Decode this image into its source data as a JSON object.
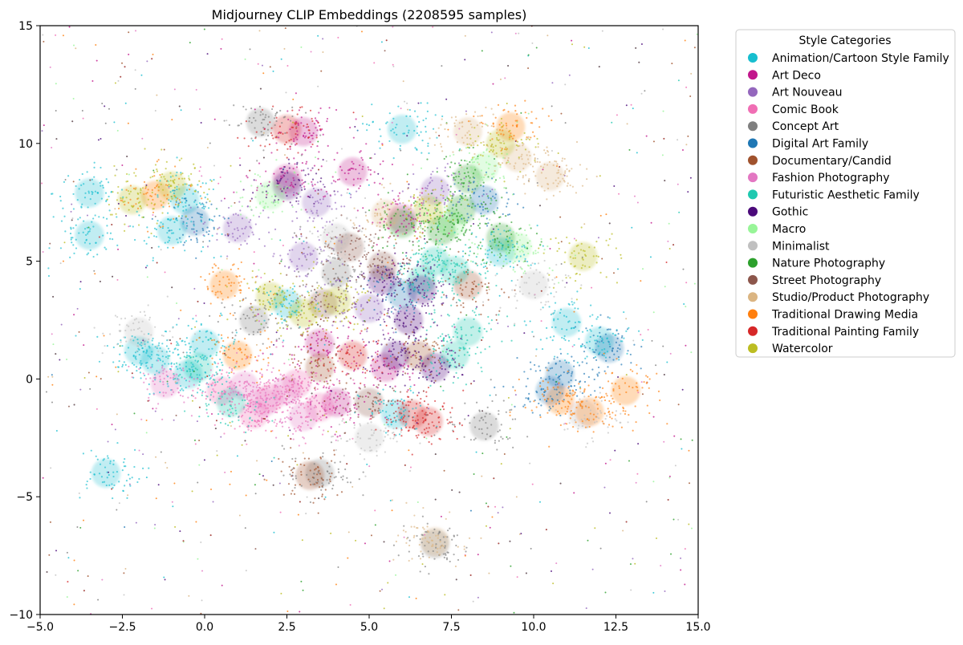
{
  "chart_data": {
    "type": "scatter",
    "title": "Midjourney CLIP Embeddings (2208595 samples)",
    "xlabel": "",
    "ylabel": "",
    "xlim": [
      -5.0,
      15.0
    ],
    "ylim": [
      -10,
      15
    ],
    "x_ticks": [
      -5.0,
      -2.5,
      0.0,
      2.5,
      5.0,
      7.5,
      10.0,
      12.5,
      15.0
    ],
    "x_tick_labels": [
      "−5.0",
      "−2.5",
      "0.0",
      "2.5",
      "5.0",
      "7.5",
      "10.0",
      "12.5",
      "15.0"
    ],
    "y_ticks": [
      -10,
      -5,
      0,
      5,
      10,
      15
    ],
    "y_tick_labels": [
      "−10",
      "−5",
      "0",
      "5",
      "10",
      "15"
    ],
    "grid": false,
    "legend": {
      "title": "Style Categories",
      "placement": "outside-right-top",
      "entries": [
        {
          "label": "Animation/Cartoon Style Family",
          "color": "#17becf"
        },
        {
          "label": "Art Deco",
          "color": "#c2178c"
        },
        {
          "label": "Art Nouveau",
          "color": "#9467bd"
        },
        {
          "label": "Comic Book",
          "color": "#f06eb4"
        },
        {
          "label": "Concept Art",
          "color": "#7f7f7f"
        },
        {
          "label": "Digital Art Family",
          "color": "#1f77b4"
        },
        {
          "label": "Documentary/Candid",
          "color": "#a0522d"
        },
        {
          "label": "Fashion Photography",
          "color": "#e377c2"
        },
        {
          "label": "Futuristic Aesthetic Family",
          "color": "#20c9b0"
        },
        {
          "label": "Gothic",
          "color": "#4b0a7a"
        },
        {
          "label": "Macro",
          "color": "#98f598"
        },
        {
          "label": "Minimalist",
          "color": "#c0c0c0"
        },
        {
          "label": "Nature Photography",
          "color": "#2ca02c"
        },
        {
          "label": "Street Photography",
          "color": "#8c564b"
        },
        {
          "label": "Studio/Product Photography",
          "color": "#dbb582"
        },
        {
          "label": "Traditional Drawing Media",
          "color": "#ff7f0e"
        },
        {
          "label": "Traditional Painting Family",
          "color": "#d62728"
        },
        {
          "label": "Watercolor",
          "color": "#bcbd22"
        }
      ]
    },
    "series": [
      {
        "name": "Animation/Cartoon Style Family",
        "color": "#17becf",
        "points": [
          [
            -1.5,
            0.8
          ],
          [
            -0.5,
            0.2
          ],
          [
            -2.0,
            1.2
          ],
          [
            -1.0,
            6.3
          ],
          [
            0.0,
            1.5
          ],
          [
            -3.5,
            7.9
          ],
          [
            -0.6,
            7.6
          ],
          [
            -3.5,
            6.1
          ],
          [
            11.0,
            2.4
          ],
          [
            9.0,
            5.4
          ],
          [
            2.5,
            3.2
          ],
          [
            12.0,
            1.6
          ],
          [
            -3.0,
            -4.0
          ],
          [
            6.0,
            10.6
          ],
          [
            5.8,
            -1.5
          ]
        ]
      },
      {
        "name": "Art Deco",
        "color": "#c2178c",
        "points": [
          [
            4.5,
            8.8
          ],
          [
            3.5,
            1.5
          ],
          [
            5.5,
            0.5
          ],
          [
            2.5,
            8.5
          ],
          [
            6.0,
            6.8
          ],
          [
            4.0,
            -1.0
          ],
          [
            3.0,
            10.5
          ]
        ]
      },
      {
        "name": "Art Nouveau",
        "color": "#9467bd",
        "points": [
          [
            3.4,
            7.5
          ],
          [
            3.0,
            5.2
          ],
          [
            7.0,
            8.0
          ],
          [
            1.0,
            6.4
          ],
          [
            5.0,
            3.0
          ]
        ]
      },
      {
        "name": "Comic Book",
        "color": "#f06eb4",
        "points": [
          [
            2.0,
            -0.8
          ],
          [
            2.8,
            -0.2
          ],
          [
            1.5,
            -1.5
          ],
          [
            0.5,
            -0.5
          ],
          [
            3.5,
            -1.2
          ]
        ]
      },
      {
        "name": "Concept Art",
        "color": "#7f7f7f",
        "points": [
          [
            1.5,
            2.5
          ],
          [
            4.0,
            4.5
          ],
          [
            1.7,
            10.9
          ],
          [
            7.0,
            -7.0
          ],
          [
            8.5,
            -2.0
          ],
          [
            3.5,
            -4.0
          ]
        ]
      },
      {
        "name": "Digital Art Family",
        "color": "#1f77b4",
        "points": [
          [
            10.5,
            -0.5
          ],
          [
            8.5,
            7.6
          ],
          [
            6.0,
            3.6
          ],
          [
            12.3,
            1.3
          ],
          [
            10.8,
            0.2
          ],
          [
            -0.3,
            6.7
          ]
        ]
      },
      {
        "name": "Documentary/Candid",
        "color": "#a0522d",
        "points": [
          [
            3.5,
            0.5
          ],
          [
            6.5,
            1.0
          ],
          [
            3.2,
            -4.1
          ],
          [
            8.0,
            4.0
          ]
        ]
      },
      {
        "name": "Fashion Photography",
        "color": "#e377c2",
        "points": [
          [
            1.8,
            -1.0
          ],
          [
            2.5,
            -0.5
          ],
          [
            1.2,
            -0.3
          ],
          [
            3.0,
            -1.6
          ],
          [
            -1.2,
            -0.2
          ]
        ]
      },
      {
        "name": "Futuristic Aesthetic Family",
        "color": "#20c9b0",
        "points": [
          [
            7.0,
            5.0
          ],
          [
            7.6,
            4.6
          ],
          [
            8.0,
            2.0
          ],
          [
            -0.2,
            0.5
          ],
          [
            0.8,
            -1.0
          ],
          [
            7.6,
            1.0
          ],
          [
            6.6,
            4.2
          ]
        ]
      },
      {
        "name": "Gothic",
        "color": "#4b0a7a",
        "points": [
          [
            6.2,
            2.5
          ],
          [
            5.8,
            1.0
          ],
          [
            6.6,
            3.8
          ],
          [
            7.0,
            0.5
          ],
          [
            5.4,
            4.2
          ],
          [
            2.5,
            8.2
          ]
        ]
      },
      {
        "name": "Macro",
        "color": "#98f598",
        "points": [
          [
            7.5,
            6.6
          ],
          [
            8.5,
            9.0
          ],
          [
            9.5,
            5.6
          ],
          [
            2.0,
            7.8
          ]
        ]
      },
      {
        "name": "Minimalist",
        "color": "#c0c0c0",
        "points": [
          [
            4.0,
            6.0
          ],
          [
            10.0,
            4.0
          ],
          [
            -2.0,
            2.0
          ],
          [
            11.5,
            -1.5
          ],
          [
            5.0,
            -2.5
          ]
        ]
      },
      {
        "name": "Nature Photography",
        "color": "#2ca02c",
        "points": [
          [
            7.2,
            6.3
          ],
          [
            6.0,
            6.6
          ],
          [
            8.0,
            8.5
          ],
          [
            9.0,
            6.0
          ],
          [
            7.8,
            7.2
          ]
        ]
      },
      {
        "name": "Street Photography",
        "color": "#8c564b",
        "points": [
          [
            4.4,
            5.6
          ],
          [
            5.4,
            4.8
          ],
          [
            3.6,
            3.2
          ],
          [
            5.0,
            -1.0
          ]
        ]
      },
      {
        "name": "Studio/Product Photography",
        "color": "#dbb582",
        "points": [
          [
            9.5,
            9.4
          ],
          [
            10.5,
            8.6
          ],
          [
            8.0,
            10.5
          ],
          [
            7.0,
            -6.9
          ],
          [
            5.5,
            7.0
          ]
        ]
      },
      {
        "name": "Traditional Drawing Media",
        "color": "#ff7f0e",
        "points": [
          [
            0.6,
            4.0
          ],
          [
            9.3,
            10.7
          ],
          [
            11.7,
            -1.4
          ],
          [
            10.8,
            -0.9
          ],
          [
            -1.5,
            7.8
          ],
          [
            1.0,
            1.0
          ],
          [
            12.8,
            -0.5
          ]
        ]
      },
      {
        "name": "Traditional Painting Family",
        "color": "#d62728",
        "points": [
          [
            6.3,
            -1.5
          ],
          [
            6.8,
            -1.8
          ],
          [
            2.5,
            10.6
          ],
          [
            4.5,
            1.0
          ]
        ]
      },
      {
        "name": "Watercolor",
        "color": "#bcbd22",
        "points": [
          [
            9.0,
            10.0
          ],
          [
            3.0,
            2.8
          ],
          [
            4.0,
            3.3
          ],
          [
            6.8,
            7.2
          ],
          [
            -1.0,
            8.2
          ],
          [
            -2.2,
            7.6
          ],
          [
            11.5,
            5.2
          ],
          [
            2.0,
            3.5
          ]
        ]
      }
    ]
  }
}
